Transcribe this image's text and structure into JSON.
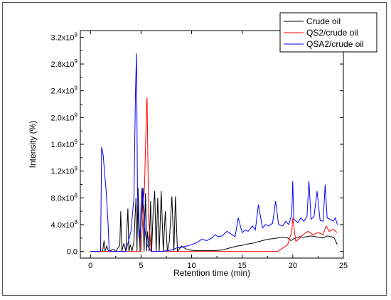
{
  "chart_data": {
    "type": "line",
    "xlabel": "Retention time (min)",
    "ylabel": "Intensity (%)",
    "xlim": [
      -1,
      25
    ],
    "ylim": [
      -100000000,
      3300000000
    ],
    "x_ticks": [
      0,
      5,
      10,
      15,
      20,
      25
    ],
    "x_tick_labels": [
      "0",
      "5",
      "10",
      "15",
      "20",
      "25"
    ],
    "y_ticks": [
      0,
      400000000,
      800000000,
      1200000000,
      1600000000,
      2000000000,
      2400000000,
      2800000000,
      3200000000
    ],
    "y_tick_labels": [
      {
        "mant": "0.0",
        "exp": ""
      },
      {
        "mant": "4.0x10",
        "exp": "8"
      },
      {
        "mant": "8.0x10",
        "exp": "8"
      },
      {
        "mant": "1.2x10",
        "exp": "9"
      },
      {
        "mant": "1.6x10",
        "exp": "9"
      },
      {
        "mant": "2.0x10",
        "exp": "9"
      },
      {
        "mant": "2.4x10",
        "exp": "9"
      },
      {
        "mant": "2.8x10",
        "exp": "9"
      },
      {
        "mant": "3.2x10",
        "exp": "9"
      }
    ],
    "legend_position": "top-right",
    "series": [
      {
        "name": "Crude oil",
        "color": "#000000",
        "x": [
          0,
          1.2,
          1.35,
          1.45,
          1.6,
          1.8,
          2.3,
          2.5,
          2.9,
          3.0,
          3.1,
          3.3,
          3.5,
          3.7,
          3.8,
          3.95,
          4.1,
          4.3,
          4.5,
          4.6,
          4.7,
          4.9,
          5.0,
          5.1,
          5.3,
          5.45,
          5.55,
          5.65,
          5.8,
          5.95,
          6.05,
          6.2,
          6.35,
          6.5,
          6.65,
          6.8,
          7.0,
          7.2,
          7.4,
          7.6,
          7.8,
          8.05,
          8.25,
          8.4,
          8.6,
          9.0,
          9.4,
          9.8,
          10.5,
          11.2,
          12.0,
          13.0,
          14.0,
          14.5,
          15.0,
          15.5,
          16.0,
          16.5,
          17.0,
          17.5,
          18.0,
          18.5,
          19.0,
          19.5,
          19.8,
          20.0,
          20.3,
          20.7,
          21.0,
          21.4,
          21.8,
          22.2,
          22.6,
          23.0,
          23.4,
          23.8,
          24.1,
          24.4
        ],
        "y": [
          0,
          0,
          160000000,
          0,
          80000000,
          0,
          30000000,
          0,
          90000000,
          600000000,
          0,
          120000000,
          0,
          640000000,
          0,
          100000000,
          0,
          150000000,
          800000000,
          0,
          950000000,
          0,
          700000000,
          950000000,
          0,
          870000000,
          0,
          300000000,
          0,
          750000000,
          0,
          600000000,
          900000000,
          0,
          800000000,
          0,
          900000000,
          0,
          600000000,
          0,
          150000000,
          820000000,
          0,
          820000000,
          0,
          80000000,
          40000000,
          20000000,
          10000000,
          10000000,
          10000000,
          20000000,
          60000000,
          80000000,
          90000000,
          110000000,
          120000000,
          140000000,
          160000000,
          180000000,
          190000000,
          200000000,
          210000000,
          200000000,
          160000000,
          180000000,
          200000000,
          220000000,
          210000000,
          220000000,
          230000000,
          220000000,
          210000000,
          200000000,
          230000000,
          220000000,
          200000000,
          100000000
        ]
      },
      {
        "name": "QS2/crude oil",
        "color": "#ff0000",
        "x": [
          0,
          5.0,
          5.35,
          5.55,
          5.6,
          5.75,
          6.0,
          8.0,
          12.0,
          15.0,
          16.5,
          17.5,
          18.5,
          19.0,
          19.5,
          19.9,
          20.0,
          20.3,
          20.7,
          21.0,
          21.5,
          22.0,
          22.5,
          23.0,
          23.3,
          23.6,
          24.0,
          24.4
        ],
        "y": [
          0,
          0,
          1000000000,
          2200000000,
          2300000000,
          500000000,
          0,
          0,
          0,
          0,
          0,
          0,
          0,
          50000000,
          100000000,
          300000000,
          500000000,
          150000000,
          200000000,
          250000000,
          300000000,
          250000000,
          280000000,
          250000000,
          380000000,
          300000000,
          330000000,
          280000000
        ]
      },
      {
        "name": "QSA2/crude oil",
        "color": "#0000ff",
        "x": [
          0,
          1.0,
          1.1,
          1.25,
          1.55,
          1.75,
          1.85,
          3.5,
          4.0,
          4.3,
          4.45,
          4.55,
          4.65,
          4.8,
          5.0,
          5.2,
          5.4,
          5.6,
          6.0,
          7.0,
          8.0,
          8.5,
          9.0,
          9.5,
          10.0,
          10.5,
          11.0,
          11.5,
          12.0,
          12.3,
          12.6,
          13.0,
          13.5,
          14.0,
          14.3,
          14.6,
          15.0,
          15.3,
          15.6,
          16.0,
          16.3,
          16.6,
          17.0,
          17.3,
          17.6,
          18.0,
          18.3,
          18.6,
          19.0,
          19.3,
          19.6,
          19.9,
          20.0,
          20.1,
          20.5,
          20.8,
          21.1,
          21.4,
          21.6,
          21.8,
          22.1,
          22.4,
          22.7,
          23.0,
          23.2,
          23.4,
          23.7,
          24.0,
          24.2,
          24.4
        ],
        "y": [
          0,
          0,
          1560000000,
          1450000000,
          900000000,
          400000000,
          0,
          0,
          300000000,
          800000000,
          2400000000,
          2960000000,
          900000000,
          200000000,
          400000000,
          950000000,
          300000000,
          100000000,
          0,
          0,
          20000000,
          50000000,
          60000000,
          80000000,
          100000000,
          130000000,
          180000000,
          160000000,
          200000000,
          250000000,
          220000000,
          230000000,
          300000000,
          250000000,
          220000000,
          500000000,
          280000000,
          320000000,
          300000000,
          380000000,
          320000000,
          700000000,
          350000000,
          400000000,
          380000000,
          420000000,
          750000000,
          400000000,
          380000000,
          450000000,
          400000000,
          550000000,
          1050000000,
          480000000,
          430000000,
          500000000,
          450000000,
          520000000,
          1050000000,
          480000000,
          520000000,
          900000000,
          460000000,
          450000000,
          1000000000,
          500000000,
          480000000,
          450000000,
          500000000,
          400000000
        ]
      }
    ]
  }
}
